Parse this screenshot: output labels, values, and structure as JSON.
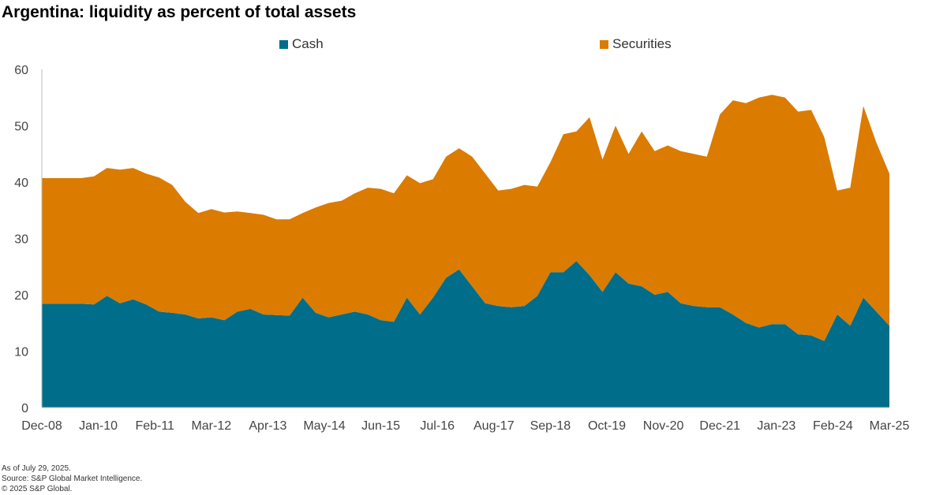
{
  "chart_data": {
    "type": "area",
    "stacked": true,
    "title": "Argentina: liquidity as percent of total assets",
    "xlabel": "",
    "ylabel": "",
    "ylim": [
      0,
      60
    ],
    "yticks": [
      0,
      10,
      20,
      30,
      40,
      50,
      60
    ],
    "grid": false,
    "legend_position": "top",
    "x_tick_labels": [
      "Dec-08",
      "Jan-10",
      "Feb-11",
      "Mar-12",
      "Apr-13",
      "May-14",
      "Jun-15",
      "Jul-16",
      "Aug-17",
      "Sep-18",
      "Oct-19",
      "Nov-20",
      "Dec-21",
      "Jan-23",
      "Feb-24",
      "Mar-25"
    ],
    "x": [
      "2008-12",
      "2009-03",
      "2009-06",
      "2009-09",
      "2009-12",
      "2010-03",
      "2010-06",
      "2010-09",
      "2010-12",
      "2011-03",
      "2011-06",
      "2011-09",
      "2011-12",
      "2012-03",
      "2012-06",
      "2012-09",
      "2012-12",
      "2013-03",
      "2013-06",
      "2013-09",
      "2013-12",
      "2014-03",
      "2014-06",
      "2014-09",
      "2014-12",
      "2015-03",
      "2015-06",
      "2015-09",
      "2015-12",
      "2016-03",
      "2016-06",
      "2016-09",
      "2016-12",
      "2017-03",
      "2017-06",
      "2017-09",
      "2017-12",
      "2018-03",
      "2018-06",
      "2018-09",
      "2018-12",
      "2019-03",
      "2019-06",
      "2019-09",
      "2019-12",
      "2020-03",
      "2020-06",
      "2020-09",
      "2020-12",
      "2021-03",
      "2021-06",
      "2021-09",
      "2021-12",
      "2022-03",
      "2022-06",
      "2022-09",
      "2022-12",
      "2023-03",
      "2023-06",
      "2023-09",
      "2023-12",
      "2024-03",
      "2024-06",
      "2024-09",
      "2024-12",
      "2025-03"
    ],
    "series": [
      {
        "name": "Cash",
        "color": "#006D8A",
        "values": [
          18.4,
          18.4,
          18.4,
          18.4,
          18.3,
          19.8,
          18.5,
          19.2,
          18.3,
          17.0,
          16.8,
          16.5,
          15.8,
          16.0,
          15.5,
          17.0,
          17.5,
          16.5,
          16.4,
          16.3,
          19.5,
          16.8,
          16.0,
          16.5,
          17.0,
          16.5,
          15.5,
          15.2,
          19.5,
          16.5,
          19.5,
          23.0,
          24.5,
          21.5,
          18.5,
          18.0,
          17.8,
          18.0,
          19.8,
          24.0,
          24.0,
          26.0,
          23.5,
          20.5,
          24.0,
          22.0,
          21.5,
          20.0,
          20.5,
          18.5,
          18.0,
          17.8,
          17.8,
          16.5,
          15.0,
          14.2,
          14.8,
          14.8,
          13.0,
          12.8,
          11.8,
          16.5,
          14.5,
          19.5,
          17.0,
          14.5
        ]
      },
      {
        "name": "Securities",
        "color": "#DB7B00",
        "values": [
          22.3,
          22.3,
          22.3,
          22.3,
          22.7,
          22.7,
          23.7,
          23.3,
          23.2,
          23.8,
          22.7,
          20.0,
          18.7,
          19.2,
          19.1,
          17.8,
          17.0,
          17.7,
          17.0,
          17.1,
          15.0,
          18.7,
          20.3,
          20.2,
          21.0,
          22.5,
          23.3,
          22.8,
          21.7,
          23.3,
          21.0,
          21.5,
          21.5,
          23.0,
          23.0,
          20.5,
          21.0,
          21.5,
          19.4,
          19.5,
          24.5,
          23.0,
          28.0,
          23.5,
          26.0,
          23.0,
          27.5,
          25.5,
          26.0,
          27.0,
          27.0,
          26.7,
          34.2,
          38.0,
          39.0,
          40.8,
          40.7,
          40.2,
          39.5,
          40.0,
          36.2,
          22.0,
          24.5,
          34.0,
          30.0,
          27.0
        ]
      }
    ]
  },
  "footer": {
    "as_of": "As of July 29, 2025.",
    "source": "Source: S&P Global Market Intelligence.",
    "copyright": "© 2025 S&P Global."
  }
}
